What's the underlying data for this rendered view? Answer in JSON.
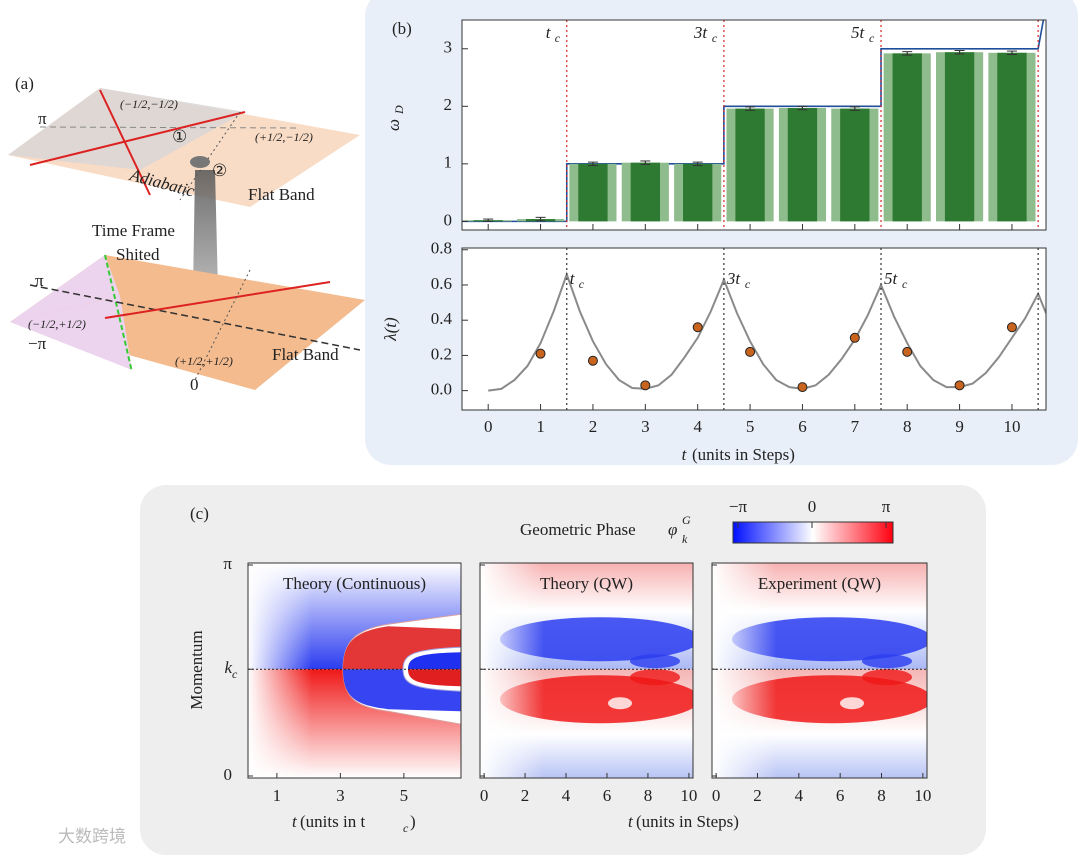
{
  "panel_a": {
    "label": "(a)",
    "top_plane": {
      "pi": "π",
      "circle1": "①",
      "circle2": "②",
      "adiabatic": "Adiabatic",
      "flat_band": "Flat Band",
      "q1": "(−1/2,−1/2)",
      "q2": "(+1/2,−1/2)"
    },
    "transfer": {
      "line1": "Time Frame",
      "line2": "Shited"
    },
    "bottom_plane": {
      "pi": "π",
      "minus_pi": "−π",
      "zero": "0",
      "flat_band": "Flat Band",
      "q1": "(−1/2,+1/2)",
      "q2": "(+1/2,+1/2)"
    }
  },
  "panel_b_label": "(b)",
  "chart_data": [
    {
      "type": "bar",
      "y_label": "ω",
      "y_label_sub": "D",
      "x": [
        0,
        1,
        2,
        3,
        4,
        5,
        6,
        7,
        8,
        9,
        10
      ],
      "values": [
        0.02,
        0.04,
        1.0,
        1.02,
        1.0,
        1.96,
        1.97,
        1.96,
        2.92,
        2.94,
        2.93
      ],
      "errors": [
        0.02,
        0.03,
        0.03,
        0.03,
        0.03,
        0.03,
        0.03,
        0.03,
        0.03,
        0.03,
        0.03
      ],
      "color": "#2f7a33",
      "light_color": "#8fbc8c",
      "xlim": [
        -0.5,
        10.65
      ],
      "ylim": [
        -0.15,
        3.5
      ],
      "yticks": [
        0,
        1,
        2,
        3
      ],
      "theory": {
        "x": [
          -0.5,
          1.5,
          1.5,
          4.5,
          4.5,
          7.5,
          7.5,
          10.5,
          10.6
        ],
        "y": [
          0,
          0,
          1,
          1,
          2,
          2,
          3,
          3,
          3.5
        ],
        "color": "#1f4e9a"
      },
      "tc_lines": [
        1.5,
        4.5,
        7.5,
        10.5
      ],
      "line_color": "#d62728",
      "tc_labels": [
        {
          "main": "t",
          "sub": "c"
        },
        {
          "main": "3t",
          "sub": "c"
        },
        {
          "main": "5t",
          "sub": "c"
        }
      ]
    },
    {
      "type": "scatter",
      "y_label": "λ(t)",
      "x_label_main": "t",
      "x_label_rest": " (units in Steps)",
      "x": [
        1,
        2,
        3,
        4,
        5,
        6,
        7,
        8,
        9,
        10
      ],
      "values": [
        0.21,
        0.17,
        0.03,
        0.36,
        0.22,
        0.02,
        0.3,
        0.22,
        0.03,
        0.36
      ],
      "errors": [
        0.015,
        0.015,
        0.015,
        0.015,
        0.015,
        0.015,
        0.015,
        0.015,
        0.015,
        0.015
      ],
      "color": "#c8641e",
      "xlim": [
        -0.5,
        10.65
      ],
      "ylim": [
        -0.11,
        0.81
      ],
      "xticks": [
        0,
        1,
        2,
        3,
        4,
        5,
        6,
        7,
        8,
        9,
        10
      ],
      "yticks": [
        {
          "value": 0,
          "label": "0.0"
        },
        0.2,
        0.4,
        0.6,
        0.8
      ],
      "theory": {
        "x": [
          0,
          0.25,
          0.5,
          0.75,
          1,
          1.25,
          1.5,
          1.75,
          2,
          2.25,
          2.5,
          2.75,
          3,
          3.25,
          3.5,
          3.75,
          4,
          4.25,
          4.5,
          4.75,
          5,
          5.25,
          5.5,
          5.75,
          6,
          6.25,
          6.5,
          6.75,
          7,
          7.25,
          7.5,
          7.75,
          8,
          8.25,
          8.5,
          8.75,
          9,
          9.25,
          9.5,
          9.75,
          10,
          10.25,
          10.5,
          10.65
        ],
        "y": [
          0,
          0.01,
          0.06,
          0.14,
          0.27,
          0.45,
          0.66,
          0.45,
          0.28,
          0.15,
          0.06,
          0.015,
          0.01,
          0.03,
          0.09,
          0.19,
          0.3,
          0.45,
          0.63,
          0.44,
          0.28,
          0.15,
          0.06,
          0.02,
          0.01,
          0.03,
          0.09,
          0.18,
          0.29,
          0.43,
          0.6,
          0.42,
          0.27,
          0.14,
          0.06,
          0.02,
          0.02,
          0.04,
          0.1,
          0.19,
          0.3,
          0.41,
          0.55,
          0.44
        ],
        "color": "#8a8a8a"
      },
      "tc_lines": [
        1.5,
        4.5,
        7.5,
        10.5
      ],
      "line_color": "#333",
      "tc_labels": [
        {
          "main": "t",
          "sub": "c"
        },
        {
          "main": "3t",
          "sub": "c"
        },
        {
          "main": "5t",
          "sub": "c"
        }
      ]
    }
  ],
  "panel_c": {
    "label": "(c)",
    "colorbar": {
      "title": "Geometric Phase ",
      "symbol": "φ",
      "sup": "G",
      "sub": "k",
      "lim": [
        -3.1416,
        3.1416
      ],
      "ticks": [
        {
          "value": -3.1416,
          "label": "−π"
        },
        0,
        {
          "value": 3.1416,
          "label": "π"
        }
      ]
    },
    "y_label": "Momentum",
    "ylim": [
      0,
      3.1416
    ],
    "yticks": [
      0,
      {
        "value": 1.59,
        "label": "k",
        "sub": "c"
      },
      {
        "value": 3.1416,
        "label": "π"
      }
    ],
    "plots": [
      {
        "title": "Theory (Continuous)",
        "xlim": [
          0.09,
          6.8
        ],
        "xticks": [
          1,
          3,
          5
        ]
      },
      {
        "title": "Theory (QW)",
        "xlim": [
          -0.2,
          10.2
        ],
        "xticks": [
          0,
          2,
          4,
          6,
          8,
          10
        ]
      },
      {
        "title": "Experiment (QW)",
        "xlim": [
          -0.2,
          10.2
        ],
        "xticks": [
          0,
          2,
          4,
          6,
          8,
          10
        ]
      }
    ],
    "x_label_1": {
      "main": "t",
      "rest": " (units in t",
      "sub": "c",
      "end": ")"
    },
    "x_label_2": {
      "main": "t",
      "rest": " (units in Steps)"
    }
  },
  "watermark": "大数跨境"
}
